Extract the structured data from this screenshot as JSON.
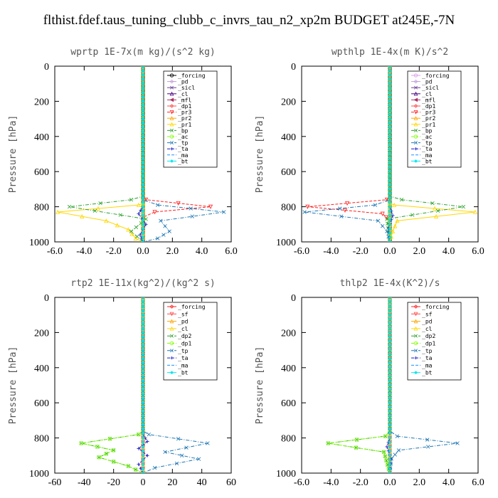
{
  "page_title": "flthist.fdef.taus_tuning_clubb_c_invrs_tau_n2_xp2m  BUDGET at245E,-7N",
  "chart_data": [
    {
      "id": "wprtp",
      "type": "line",
      "title": "wprtp   1E-7x(m kg)/(s^2 kg)",
      "ylabel": "Pressure [hPa]",
      "xlim": [
        -6,
        6
      ],
      "ylim": [
        1000,
        0
      ],
      "xticks": [
        "-6.0",
        "-4.0",
        "-2.0",
        "0.0",
        "2.0",
        "4.0",
        "6.0"
      ],
      "yticks": [
        "0",
        "200",
        "400",
        "600",
        "800",
        "1000"
      ],
      "legend_position": "top-right",
      "series": [
        {
          "name": "_forcing",
          "color": "#000000",
          "marker": "circle",
          "dash": "solid",
          "x": [
            0.0,
            0.0
          ],
          "y": [
            0,
            1000
          ]
        },
        {
          "name": "_pd",
          "color": "#c09adb",
          "marker": "diamond",
          "dash": "solid",
          "x": [
            0.0,
            0.0
          ],
          "y": [
            0,
            1000
          ]
        },
        {
          "name": "_sicl",
          "color": "#6a3d9a",
          "marker": "x",
          "dash": "solid",
          "x": [
            0.0,
            0.0
          ],
          "y": [
            0,
            1000
          ]
        },
        {
          "name": "_cl",
          "color": "#4b0082",
          "marker": "triangle",
          "dash": "solid",
          "x": [
            0.0,
            0.0
          ],
          "y": [
            0,
            1000
          ]
        },
        {
          "name": "_mfl",
          "color": "#b03060",
          "marker": "triangle-left",
          "dash": "solid",
          "x": [
            0.0,
            0.0
          ],
          "y": [
            0,
            1000
          ]
        },
        {
          "name": "_dp1",
          "color": "#ff4a4a",
          "marker": "diamond",
          "dash": "solid",
          "x": [
            0.0,
            0.0
          ],
          "y": [
            0,
            1000
          ]
        },
        {
          "name": "_pr3",
          "color": "#ff2020",
          "marker": "triangle-down",
          "dash": "dash",
          "x": [
            0.0,
            0.0,
            0.2,
            4.6,
            0.8,
            0.0,
            0.0
          ],
          "y": [
            0,
            740,
            760,
            800,
            830,
            860,
            1000
          ]
        },
        {
          "name": "_pr2",
          "color": "#ffa500",
          "marker": "triangle",
          "dash": "solid",
          "x": [
            0.0,
            0.0,
            0.0
          ],
          "y": [
            0,
            900,
            1000
          ]
        },
        {
          "name": "_pr1",
          "color": "#ffd700",
          "marker": "triangle",
          "dash": "solid",
          "x": [
            0.0,
            0.0,
            -0.3,
            -5.8,
            -2.5,
            -1.0,
            -0.5,
            0.0
          ],
          "y": [
            0,
            780,
            790,
            830,
            880,
            930,
            980,
            1000
          ]
        },
        {
          "name": "_bp",
          "color": "#2ca02c",
          "marker": "x",
          "dash": "dashdot",
          "x": [
            0.0,
            0.0,
            -0.8,
            -5.0,
            0.2,
            -0.8,
            0.0
          ],
          "y": [
            0,
            740,
            760,
            800,
            870,
            940,
            1000
          ]
        },
        {
          "name": "_ac",
          "color": "#7fff00",
          "marker": "circle",
          "dash": "dash",
          "x": [
            0.0,
            0.0,
            0.0
          ],
          "y": [
            0,
            900,
            1000
          ]
        },
        {
          "name": "_tp",
          "color": "#1f77b4",
          "marker": "x",
          "dash": "dashdot",
          "x": [
            0.0,
            0.0,
            1.0,
            5.5,
            1.2,
            1.8,
            1.0,
            0.0
          ],
          "y": [
            0,
            760,
            790,
            830,
            880,
            940,
            980,
            1000
          ]
        },
        {
          "name": "_ta",
          "color": "#1c1cc8",
          "marker": "plus",
          "dash": "dash",
          "x": [
            0.0,
            0.0,
            -0.3,
            0.2,
            -0.2,
            0.0
          ],
          "y": [
            0,
            800,
            840,
            900,
            960,
            1000
          ]
        },
        {
          "name": "_ma",
          "color": "#1e90ff",
          "marker": "none",
          "dash": "dash",
          "x": [
            0.0,
            0.0
          ],
          "y": [
            0,
            1000
          ]
        },
        {
          "name": "_bt",
          "color": "#00e5ee",
          "marker": "star",
          "dash": "solid",
          "x": [
            0.0,
            0.0
          ],
          "y": [
            0,
            1000
          ]
        }
      ]
    },
    {
      "id": "wpthlp",
      "type": "line",
      "title": "wpthlp   1E-4x(m K)/s^2",
      "ylabel": "Pressure [hPa]",
      "xlim": [
        -6,
        6
      ],
      "ylim": [
        1000,
        0
      ],
      "xticks": [
        "-6.0",
        "-4.0",
        "-2.0",
        "0.0",
        "2.0",
        "4.0",
        "6.0"
      ],
      "yticks": [
        "0",
        "200",
        "400",
        "600",
        "800",
        "1000"
      ],
      "legend_position": "top-right",
      "series": [
        {
          "name": "_forcing",
          "color": "#d8a0e8",
          "marker": "circle",
          "dash": "solid",
          "x": [
            0.0,
            0.0
          ],
          "y": [
            0,
            1000
          ]
        },
        {
          "name": "_pd",
          "color": "#c09adb",
          "marker": "diamond",
          "dash": "solid",
          "x": [
            0.0,
            0.0
          ],
          "y": [
            0,
            1000
          ]
        },
        {
          "name": "_sicl",
          "color": "#6a3d9a",
          "marker": "x",
          "dash": "solid",
          "x": [
            0.0,
            0.0
          ],
          "y": [
            0,
            1000
          ]
        },
        {
          "name": "_cl",
          "color": "#4b0082",
          "marker": "triangle",
          "dash": "solid",
          "x": [
            0.0,
            0.0
          ],
          "y": [
            0,
            1000
          ]
        },
        {
          "name": "_mfl",
          "color": "#b03060",
          "marker": "triangle-left",
          "dash": "solid",
          "x": [
            0.0,
            0.0
          ],
          "y": [
            0,
            1000
          ]
        },
        {
          "name": "_dp1",
          "color": "#ff4a4a",
          "marker": "diamond",
          "dash": "solid",
          "x": [
            0.0,
            0.0
          ],
          "y": [
            0,
            1000
          ]
        },
        {
          "name": "_pr3",
          "color": "#ff2020",
          "marker": "triangle-down",
          "dash": "dash",
          "x": [
            0.0,
            0.0,
            -0.2,
            -5.6,
            -0.5,
            0.0,
            0.0
          ],
          "y": [
            0,
            740,
            760,
            800,
            840,
            880,
            1000
          ]
        },
        {
          "name": "_pr2",
          "color": "#ffa500",
          "marker": "triangle",
          "dash": "solid",
          "x": [
            0.0,
            0.0,
            0.0
          ],
          "y": [
            0,
            900,
            1000
          ]
        },
        {
          "name": "_pr1",
          "color": "#ffd700",
          "marker": "triangle",
          "dash": "solid",
          "x": [
            0.0,
            0.0,
            0.3,
            5.8,
            0.5,
            0.2,
            0.0
          ],
          "y": [
            0,
            780,
            790,
            830,
            880,
            940,
            1000
          ]
        },
        {
          "name": "_bp",
          "color": "#2ca02c",
          "marker": "x",
          "dash": "dashdot",
          "x": [
            0.0,
            0.0,
            0.8,
            5.0,
            -0.2,
            0.0
          ],
          "y": [
            0,
            740,
            760,
            800,
            870,
            1000
          ]
        },
        {
          "name": "_ac",
          "color": "#7fff00",
          "marker": "circle",
          "dash": "dash",
          "x": [
            0.0,
            0.0,
            0.0
          ],
          "y": [
            0,
            900,
            1000
          ]
        },
        {
          "name": "_tp",
          "color": "#1f77b4",
          "marker": "x",
          "dash": "dashdot",
          "x": [
            0.0,
            0.0,
            -1.0,
            -5.8,
            -0.8,
            -0.2,
            0.0
          ],
          "y": [
            0,
            760,
            790,
            830,
            880,
            940,
            1000
          ]
        },
        {
          "name": "_ta",
          "color": "#1c1cc8",
          "marker": "plus",
          "dash": "dash",
          "x": [
            0.0,
            0.0,
            0.2,
            -0.1,
            0.0
          ],
          "y": [
            0,
            800,
            850,
            920,
            1000
          ]
        },
        {
          "name": "_ma",
          "color": "#1e90ff",
          "marker": "none",
          "dash": "dash",
          "x": [
            0.0,
            0.0
          ],
          "y": [
            0,
            1000
          ]
        },
        {
          "name": "_bt",
          "color": "#00e5ee",
          "marker": "star",
          "dash": "solid",
          "x": [
            0.0,
            0.0
          ],
          "y": [
            0,
            1000
          ]
        }
      ]
    },
    {
      "id": "rtp2",
      "type": "line",
      "title": "rtp2   1E-11x(kg^2)/(kg^2 s)",
      "ylabel": "Pressure [hPa]",
      "xlim": [
        -60,
        60
      ],
      "ylim": [
        1000,
        0
      ],
      "xticks": [
        "-60",
        "-40",
        "-20",
        "0",
        "20",
        "40",
        "60"
      ],
      "yticks": [
        "0",
        "200",
        "400",
        "600",
        "800",
        "1000"
      ],
      "legend_position": "top-right",
      "series": [
        {
          "name": "_forcing",
          "color": "#ff2020",
          "marker": "diamond",
          "dash": "solid",
          "x": [
            0.0,
            0.0
          ],
          "y": [
            0,
            1000
          ]
        },
        {
          "name": "_sf",
          "color": "#ff4a4a",
          "marker": "triangle-down",
          "dash": "solid",
          "x": [
            0.0,
            0.0
          ],
          "y": [
            0,
            1000
          ]
        },
        {
          "name": "_pd",
          "color": "#ffa500",
          "marker": "triangle",
          "dash": "solid",
          "x": [
            0.0,
            0.0
          ],
          "y": [
            0,
            1000
          ]
        },
        {
          "name": "_cl",
          "color": "#ffd700",
          "marker": "triangle",
          "dash": "solid",
          "x": [
            0.0,
            0.0
          ],
          "y": [
            0,
            1000
          ]
        },
        {
          "name": "_dp2",
          "color": "#2ca02c",
          "marker": "x",
          "dash": "dashdot",
          "x": [
            0.0,
            0.0,
            -3.0,
            -42.0,
            -20.0,
            -30.0,
            -10.0,
            0.0
          ],
          "y": [
            0,
            760,
            780,
            830,
            870,
            910,
            960,
            1000
          ]
        },
        {
          "name": "_dp1",
          "color": "#7fff00",
          "marker": "circle",
          "dash": "dash",
          "x": [
            0.0,
            0.0,
            -3.0,
            -42.0,
            -20.0,
            -30.0,
            -10.0,
            0.0
          ],
          "y": [
            0,
            760,
            780,
            830,
            870,
            910,
            960,
            1000
          ]
        },
        {
          "name": "_tp",
          "color": "#1f77b4",
          "marker": "x",
          "dash": "dashdot",
          "x": [
            0.0,
            0.0,
            4.0,
            44.0,
            15.0,
            38.0,
            8.0,
            0.0
          ],
          "y": [
            0,
            760,
            780,
            830,
            880,
            920,
            970,
            1000
          ]
        },
        {
          "name": "_ta",
          "color": "#1c1cc8",
          "marker": "plus",
          "dash": "dash",
          "x": [
            0.0,
            0.0,
            3.0,
            -3.0,
            3.0,
            -3.0,
            0.0
          ],
          "y": [
            0,
            780,
            820,
            860,
            900,
            950,
            1000
          ]
        },
        {
          "name": "_ma",
          "color": "#1e90ff",
          "marker": "none",
          "dash": "dash",
          "x": [
            0.0,
            0.0
          ],
          "y": [
            0,
            1000
          ]
        },
        {
          "name": "_bt",
          "color": "#00e5ee",
          "marker": "star",
          "dash": "solid",
          "x": [
            0.0,
            0.0
          ],
          "y": [
            0,
            1000
          ]
        }
      ]
    },
    {
      "id": "thlp2",
      "type": "line",
      "title": "thlp2   1E-4x(K^2)/s",
      "ylabel": "Pressure [hPa]",
      "xlim": [
        -6,
        6
      ],
      "ylim": [
        1000,
        0
      ],
      "xticks": [
        "-6.0",
        "-4.0",
        "-2.0",
        "0.0",
        "2.0",
        "4.0",
        "6.0"
      ],
      "yticks": [
        "0",
        "200",
        "400",
        "600",
        "800",
        "1000"
      ],
      "legend_position": "top-right",
      "series": [
        {
          "name": "_forcing",
          "color": "#ff2020",
          "marker": "diamond",
          "dash": "solid",
          "x": [
            0.0,
            0.0
          ],
          "y": [
            0,
            1000
          ]
        },
        {
          "name": "_sf",
          "color": "#ff4a4a",
          "marker": "triangle-down",
          "dash": "solid",
          "x": [
            0.0,
            0.0
          ],
          "y": [
            0,
            1000
          ]
        },
        {
          "name": "_pd",
          "color": "#ffa500",
          "marker": "triangle",
          "dash": "solid",
          "x": [
            0.0,
            0.0
          ],
          "y": [
            0,
            1000
          ]
        },
        {
          "name": "_cl",
          "color": "#ffd700",
          "marker": "triangle",
          "dash": "solid",
          "x": [
            0.0,
            0.0
          ],
          "y": [
            0,
            1000
          ]
        },
        {
          "name": "_dp2",
          "color": "#2ca02c",
          "marker": "x",
          "dash": "dashdot",
          "x": [
            0.0,
            0.0,
            -0.3,
            -4.2,
            -0.4,
            0.0
          ],
          "y": [
            0,
            760,
            790,
            830,
            880,
            1000
          ]
        },
        {
          "name": "_dp1",
          "color": "#7fff00",
          "marker": "circle",
          "dash": "dash",
          "x": [
            0.0,
            0.0,
            -0.3,
            -4.2,
            -0.4,
            0.0
          ],
          "y": [
            0,
            760,
            790,
            830,
            880,
            1000
          ]
        },
        {
          "name": "_tp",
          "color": "#1f77b4",
          "marker": "x",
          "dash": "dashdot",
          "x": [
            0.0,
            0.0,
            0.5,
            4.6,
            0.6,
            0.1,
            0.0
          ],
          "y": [
            0,
            760,
            790,
            830,
            870,
            920,
            1000
          ]
        },
        {
          "name": "_ta",
          "color": "#1c1cc8",
          "marker": "plus",
          "dash": "dash",
          "x": [
            0.0,
            0.0,
            -0.2,
            0.1,
            0.0
          ],
          "y": [
            0,
            800,
            850,
            920,
            1000
          ]
        },
        {
          "name": "_ma",
          "color": "#1e90ff",
          "marker": "none",
          "dash": "dash",
          "x": [
            0.0,
            0.0
          ],
          "y": [
            0,
            1000
          ]
        },
        {
          "name": "_bt",
          "color": "#00e5ee",
          "marker": "star",
          "dash": "solid",
          "x": [
            0.0,
            0.0
          ],
          "y": [
            0,
            1000
          ]
        }
      ]
    }
  ]
}
